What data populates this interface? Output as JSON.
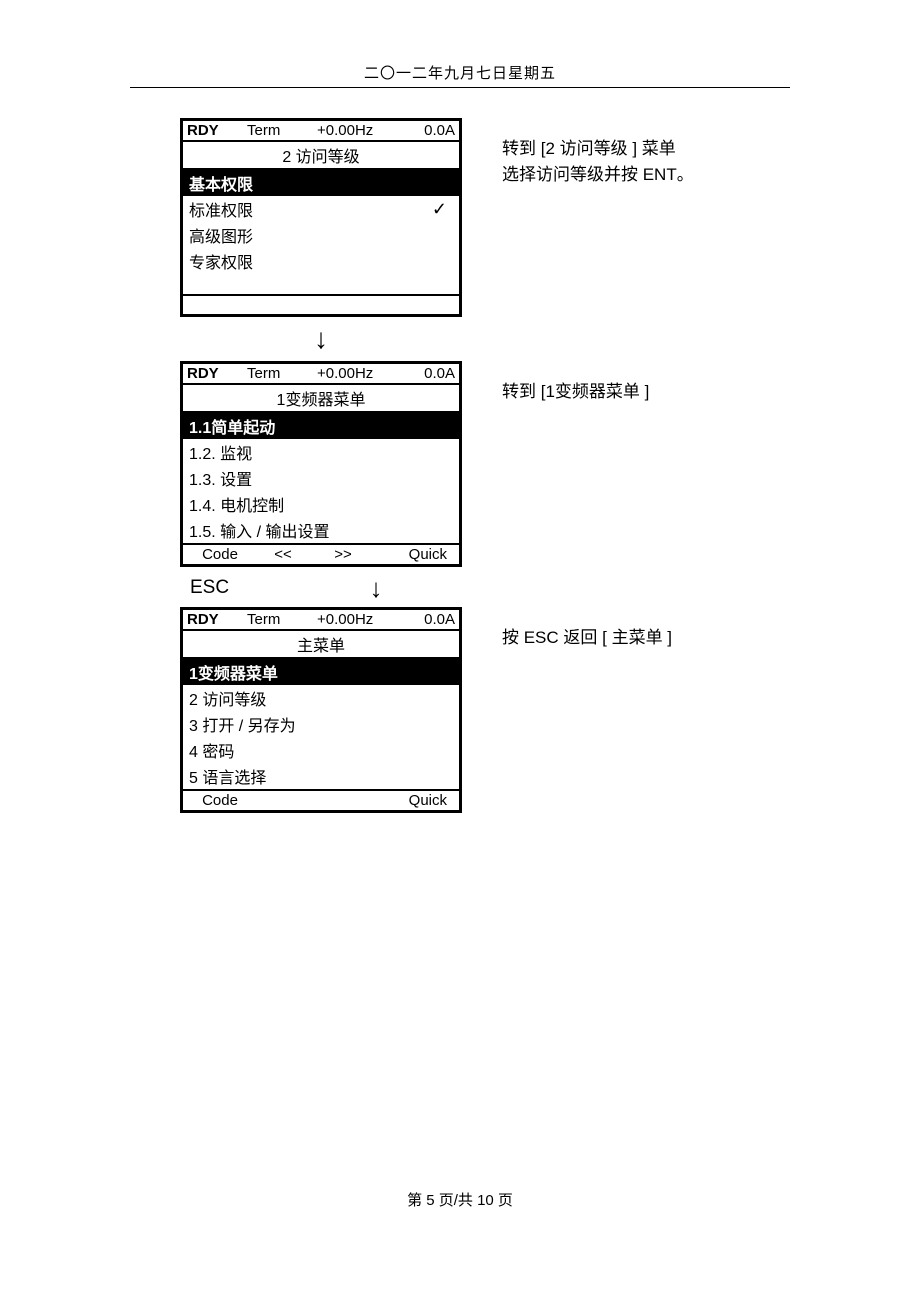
{
  "page_header": "二〇一二年九月七日星期五",
  "screen1": {
    "hdr_rdy": "RDY",
    "hdr_term": "Term",
    "hdr_hz": "+0.00Hz",
    "hdr_a": "0.0A",
    "title": "2 访问等级",
    "item0": "基本权限",
    "item1": "标准权限",
    "item1_check": "✓",
    "item2": "高级图形",
    "item3": "专家权限",
    "desc_line1": "转到 [2 访问等级 ] 菜单",
    "desc_line2": "选择访问等级并按 ENT。"
  },
  "screen2": {
    "hdr_rdy": "RDY",
    "hdr_term": "Term",
    "hdr_hz": "+0.00Hz",
    "hdr_a": "0.0A",
    "title": "1变频器菜单",
    "item0": "1.1简单起动",
    "item1": "1.2. 监视",
    "item2": "1.3. 设置",
    "item3": "1.4. 电机控制",
    "item4": "1.5. 输入 / 输出设置",
    "ftr_code": "Code",
    "ftr_ll": "<<",
    "ftr_rr": ">>",
    "ftr_quick": "Quick",
    "desc": "转到 [1变频器菜单 ]"
  },
  "esc_label": "ESC",
  "screen3": {
    "hdr_rdy": "RDY",
    "hdr_term": "Term",
    "hdr_hz": "+0.00Hz",
    "hdr_a": "0.0A",
    "title": "主菜单",
    "item0": "1变频器菜单",
    "item1": "2 访问等级",
    "item2": "3 打开 / 另存为",
    "item3": "4 密码",
    "item4": "5 语言选择",
    "ftr_code": "Code",
    "ftr_quick": "Quick",
    "desc": "按 ESC 返回 [ 主菜单 ]"
  },
  "arrow_down": "↓",
  "page_footer": "第 5 页/共 10 页"
}
